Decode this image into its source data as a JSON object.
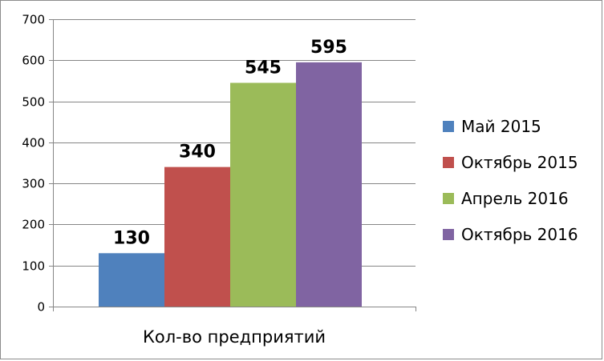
{
  "chart_data": {
    "type": "bar",
    "categories": [
      "Кол-во предприятий"
    ],
    "series": [
      {
        "name": "Май 2015",
        "values": [
          130
        ],
        "color": "#4f81bd"
      },
      {
        "name": "Октябрь 2015",
        "values": [
          340
        ],
        "color": "#c0504d"
      },
      {
        "name": "Апрель 2016",
        "values": [
          545
        ],
        "color": "#9bbb59"
      },
      {
        "name": "Октябрь 2016",
        "values": [
          595
        ],
        "color": "#8064a2"
      }
    ],
    "ylim": [
      0,
      700
    ],
    "yticks": [
      "0",
      "100",
      "200",
      "300",
      "400",
      "500",
      "600",
      "700"
    ],
    "ytick_values": [
      0,
      100,
      200,
      300,
      400,
      500,
      600,
      700
    ],
    "data_labels": [
      "130",
      "340",
      "545",
      "595"
    ],
    "grid": true,
    "legend_position": "right"
  }
}
